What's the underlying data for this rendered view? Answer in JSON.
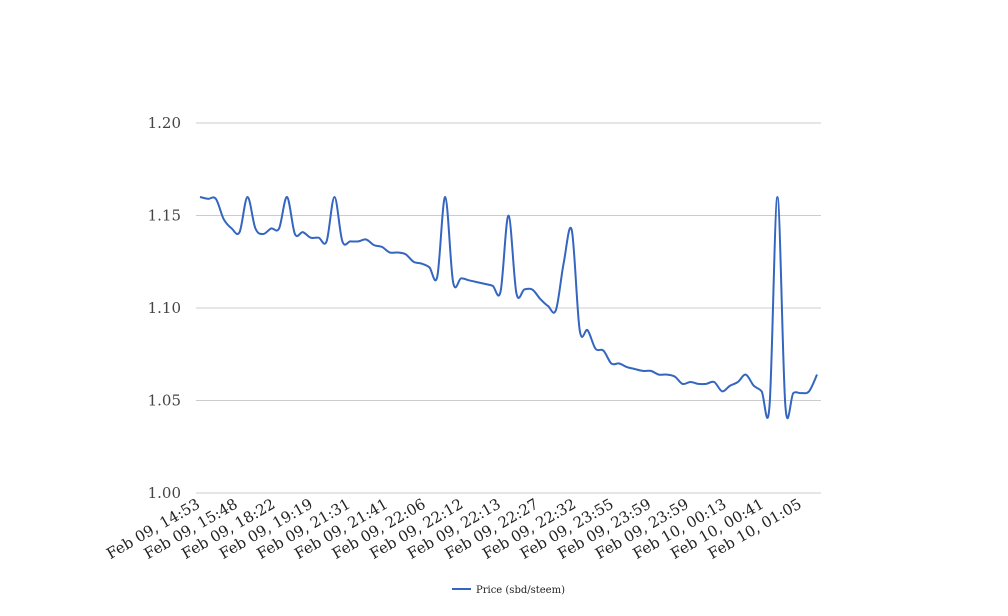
{
  "chart_data": {
    "type": "line",
    "title": "",
    "xlabel": "",
    "ylabel": "",
    "ylim": [
      1.0,
      1.2
    ],
    "y_ticks": [
      "1.00",
      "1.05",
      "1.10",
      "1.15",
      "1.20"
    ],
    "grid": "horizontal",
    "legend_position": "bottom",
    "x_tick_labels": [
      "Feb 09, 14:53",
      "Feb 09, 15:48",
      "Feb 09, 18:22",
      "Feb 09, 19:19",
      "Feb 09, 21:31",
      "Feb 09, 21:41",
      "Feb 09, 22:06",
      "Feb 09, 22:12",
      "Feb 09, 22:13",
      "Feb 09, 22:27",
      "Feb 09, 22:32",
      "Feb 09, 23:55",
      "Feb 09, 23:59",
      "Feb 09, 23:59",
      "Feb 10, 00:13",
      "Feb 10, 00:41",
      "Feb 10, 01:05"
    ],
    "series": [
      {
        "name": "Price (sbd/steem)",
        "color": "#3465bf",
        "values": [
          1.16,
          1.159,
          1.159,
          1.148,
          1.143,
          1.141,
          1.16,
          1.143,
          1.14,
          1.143,
          1.143,
          1.16,
          1.14,
          1.141,
          1.138,
          1.138,
          1.136,
          1.16,
          1.136,
          1.136,
          1.136,
          1.137,
          1.134,
          1.133,
          1.13,
          1.13,
          1.129,
          1.125,
          1.124,
          1.122,
          1.117,
          1.16,
          1.114,
          1.116,
          1.115,
          1.114,
          1.113,
          1.112,
          1.109,
          1.15,
          1.108,
          1.11,
          1.11,
          1.105,
          1.101,
          1.099,
          1.125,
          1.142,
          1.088,
          1.088,
          1.078,
          1.077,
          1.07,
          1.07,
          1.068,
          1.067,
          1.066,
          1.066,
          1.064,
          1.064,
          1.063,
          1.059,
          1.06,
          1.059,
          1.059,
          1.06,
          1.055,
          1.058,
          1.06,
          1.064,
          1.058,
          1.055,
          1.047,
          1.16,
          1.047,
          1.054,
          1.054,
          1.055,
          1.064
        ]
      }
    ]
  }
}
